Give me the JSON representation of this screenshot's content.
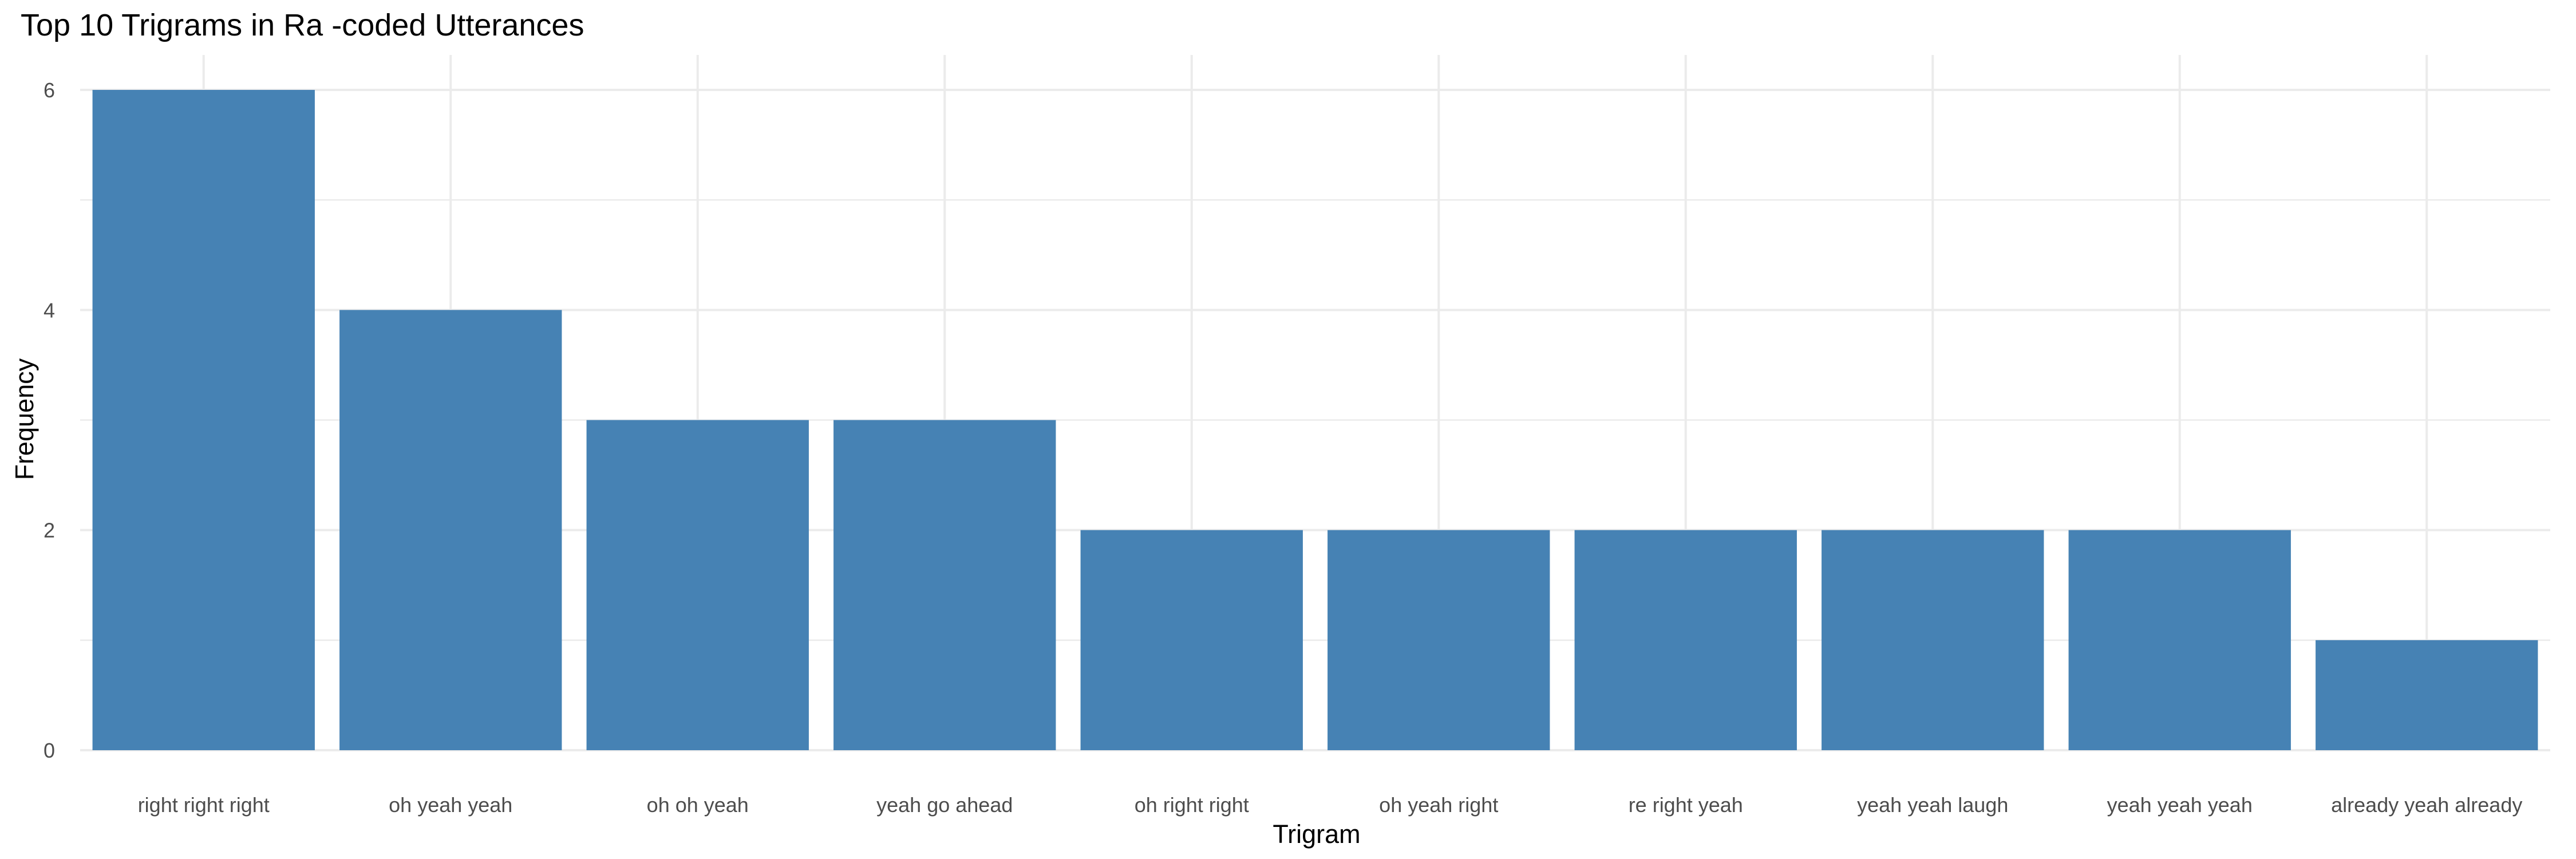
{
  "chart_data": {
    "type": "bar",
    "title": "Top 10 Trigrams in Ra -coded Utterances",
    "xlabel": "Trigram",
    "ylabel": "Frequency",
    "categories": [
      "right right right",
      "oh yeah yeah",
      "oh oh yeah",
      "yeah go ahead",
      "oh right right",
      "oh yeah right",
      "re right yeah",
      "yeah yeah laugh",
      "yeah yeah yeah",
      "already yeah already"
    ],
    "values": [
      6,
      4,
      3,
      3,
      2,
      2,
      2,
      2,
      2,
      1
    ],
    "ylim": [
      0,
      6.3
    ],
    "yticks": [
      0,
      2,
      4,
      6
    ],
    "grid": true,
    "bar_color": "#4682B4",
    "grid_color": "#EBEBEB"
  }
}
